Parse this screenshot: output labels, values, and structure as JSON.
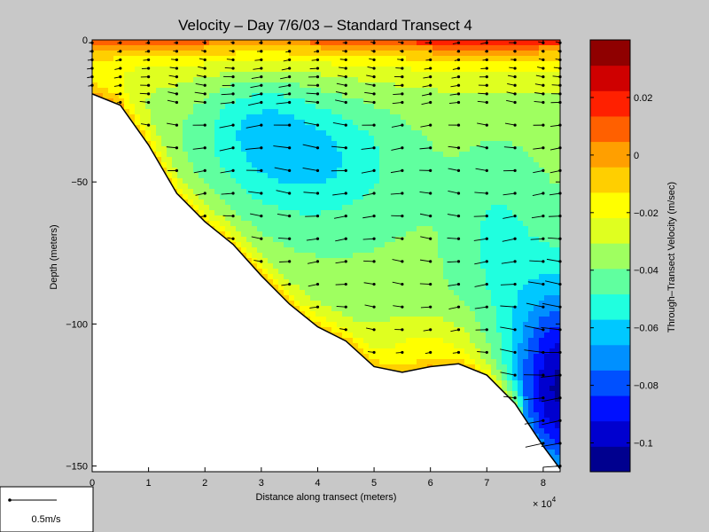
{
  "chart_data": {
    "type": "contour",
    "title": "Velocity – Day 7/6/03 – Standard Transect 4",
    "xlabel": "Distance along transect (meters)",
    "ylabel": "Depth (meters)",
    "x_multiplier": "× 10",
    "x_multiplier_exp": "4",
    "xlim": [
      0,
      8.3
    ],
    "ylim": [
      -152,
      0
    ],
    "x_ticks": [
      "0",
      "1",
      "2",
      "3",
      "4",
      "5",
      "6",
      "7",
      "8"
    ],
    "x_tick_values": [
      0,
      1,
      2,
      3,
      4,
      5,
      6,
      7,
      8
    ],
    "y_ticks": [
      "0",
      "−50",
      "−100",
      "−150"
    ],
    "y_tick_values": [
      0,
      -50,
      -100,
      -150
    ],
    "bottom_profile": [
      [
        0,
        -19
      ],
      [
        0.5,
        -23
      ],
      [
        1,
        -37
      ],
      [
        1.5,
        -54
      ],
      [
        2,
        -64
      ],
      [
        2.5,
        -72
      ],
      [
        3,
        -83
      ],
      [
        3.5,
        -93
      ],
      [
        4,
        -101
      ],
      [
        4.5,
        -106
      ],
      [
        5,
        -115
      ],
      [
        5.5,
        -117
      ],
      [
        6,
        -115
      ],
      [
        6.5,
        -114
      ],
      [
        7,
        -118
      ],
      [
        7.5,
        -128
      ],
      [
        8,
        -143
      ],
      [
        8.3,
        -151
      ]
    ],
    "profile_x": [
      0,
      0.5,
      1,
      1.5,
      2,
      2.5,
      3,
      3.5,
      4,
      4.5,
      5,
      5.5,
      6,
      6.5,
      7,
      7.5,
      8,
      8.3
    ],
    "colorbar": {
      "label": "Through–Transect Velocity (m/sec)",
      "range": [
        -0.11,
        0.04
      ],
      "ticks": [
        "0.02",
        "0",
        "−0.02",
        "−0.04",
        "−0.06",
        "−0.08",
        "−0.1"
      ],
      "tick_values": [
        0.02,
        0,
        -0.02,
        -0.04,
        -0.06,
        -0.08,
        -0.1
      ],
      "colors": [
        "#00008f",
        "#0000cf",
        "#0010ff",
        "#0050ff",
        "#0090ff",
        "#00c8ff",
        "#20ffdf",
        "#60ff9f",
        "#9fff60",
        "#dfff20",
        "#ffff00",
        "#ffcf00",
        "#ff9f00",
        "#ff6000",
        "#ff2000",
        "#cf0000",
        "#8f0000"
      ]
    },
    "velocity_extremes": {
      "min_region": "near 8.2e4 m, 100–140 m depth",
      "surface_max": "near 7e4 m, 0–3 m depth"
    }
  },
  "scale": {
    "label": "0.5m/s"
  }
}
